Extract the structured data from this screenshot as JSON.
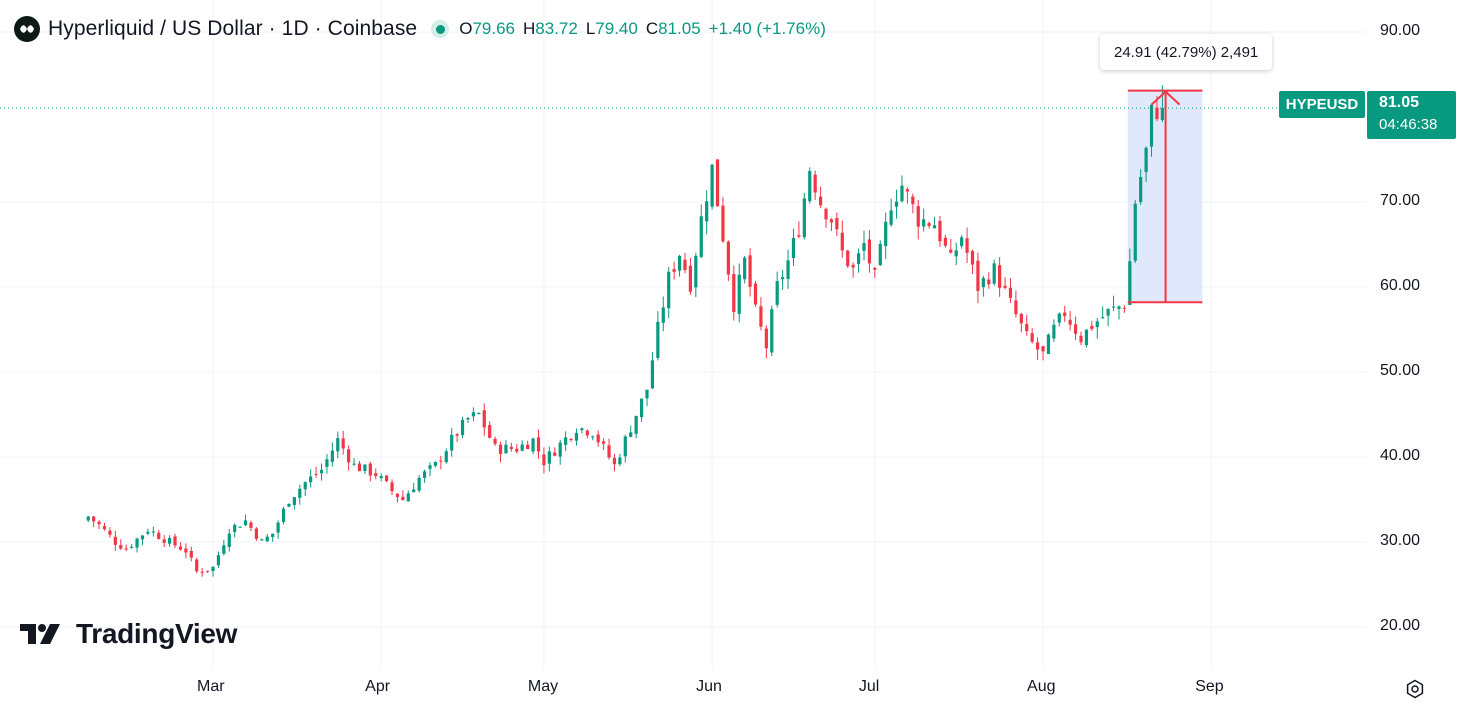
{
  "header": {
    "symbol_title": "Hyperliquid / US Dollar · 1D · Coinbase",
    "open_label": "O",
    "open_value": "79.66",
    "high_label": "H",
    "high_value": "83.72",
    "low_label": "L",
    "low_value": "79.40",
    "close_label": "C",
    "close_value": "81.05",
    "change": "+1.40 (+1.76%)",
    "logo_icon": "hyperliquid-logo-icon",
    "market_status_icon": "market-open-dot-icon"
  },
  "measure_tooltip": "24.91 (42.79%) 2,491",
  "price_tag": {
    "symbol": "HYPEUSD",
    "price": "81.05",
    "countdown": "04:46:38"
  },
  "brand": {
    "name": "TradingView"
  },
  "settings_icon": "settings-gear-icon",
  "colors": {
    "up": "#089981",
    "down": "#F23645",
    "measure": "#F23645",
    "measure_fill": "#DBE4FB",
    "grid": "#F0F3FA",
    "text": "#131722"
  },
  "chart_data": {
    "type": "candlestick",
    "interval": "1D",
    "ylim": [
      13,
      93
    ],
    "y_ticks": [
      "90.00",
      "70.00",
      "60.00",
      "50.00",
      "40.00",
      "30.00",
      "20.00"
    ],
    "x_ticks": [
      "Mar",
      "Apr",
      "May",
      "Jun",
      "Jul",
      "Aug",
      "Sep"
    ],
    "grid": true,
    "current_price": 81.05,
    "date_range": {
      "first_candle_day": -23,
      "last_candle_day": 175,
      "x_tick_days": [
        0,
        31,
        61,
        92,
        122,
        153,
        184
      ]
    },
    "anchors": [
      [
        -23,
        33.0
      ],
      [
        -21,
        32.0
      ],
      [
        -18,
        30.0
      ],
      [
        -16,
        29.2
      ],
      [
        -12,
        31.5
      ],
      [
        -8,
        30.0
      ],
      [
        -5,
        29.0
      ],
      [
        -3,
        26.5
      ],
      [
        0,
        27.0
      ],
      [
        3,
        31.5
      ],
      [
        6,
        32.5
      ],
      [
        9,
        30.0
      ],
      [
        11,
        31.0
      ],
      [
        14,
        35.0
      ],
      [
        17,
        37.0
      ],
      [
        20,
        38.5
      ],
      [
        23,
        42.0
      ],
      [
        26,
        39.0
      ],
      [
        30,
        38.0
      ],
      [
        33,
        36.0
      ],
      [
        35,
        35.0
      ],
      [
        38,
        37.5
      ],
      [
        41,
        39.0
      ],
      [
        44,
        42.0
      ],
      [
        47,
        44.5
      ],
      [
        49,
        45.0
      ],
      [
        52,
        41.0
      ],
      [
        56,
        41.0
      ],
      [
        59,
        42.0
      ],
      [
        61,
        39.5
      ],
      [
        64,
        41.5
      ],
      [
        67,
        43.5
      ],
      [
        70,
        43.0
      ],
      [
        72,
        41.0
      ],
      [
        74,
        39.0
      ],
      [
        76,
        42.0
      ],
      [
        78,
        45.0
      ],
      [
        80,
        48.0
      ],
      [
        82,
        55.0
      ],
      [
        84,
        61.0
      ],
      [
        86,
        64.0
      ],
      [
        88,
        60.5
      ],
      [
        90,
        68.0
      ],
      [
        92,
        74.0
      ],
      [
        94,
        66.0
      ],
      [
        96,
        58.0
      ],
      [
        98,
        63.0
      ],
      [
        100,
        57.0
      ],
      [
        102,
        53.0
      ],
      [
        104,
        60.0
      ],
      [
        106,
        63.0
      ],
      [
        108,
        67.0
      ],
      [
        110,
        74.0
      ],
      [
        112,
        70.0
      ],
      [
        114,
        68.0
      ],
      [
        116,
        64.0
      ],
      [
        118,
        62.0
      ],
      [
        120,
        65.0
      ],
      [
        122,
        61.0
      ],
      [
        125,
        70.0
      ],
      [
        127,
        72.0
      ],
      [
        130,
        68.0
      ],
      [
        133,
        67.5
      ],
      [
        136,
        63.0
      ],
      [
        138,
        66.0
      ],
      [
        141,
        60.0
      ],
      [
        144,
        62.0
      ],
      [
        147,
        58.0
      ],
      [
        150,
        54.0
      ],
      [
        153,
        52.0
      ],
      [
        155,
        55.0
      ],
      [
        157,
        57.0
      ],
      [
        160,
        54.0
      ],
      [
        162,
        55.5
      ],
      [
        165,
        57.0
      ],
      [
        168,
        58.0
      ],
      [
        169,
        63.0
      ],
      [
        170,
        70.0
      ],
      [
        172,
        76.0
      ],
      [
        173,
        80.5
      ],
      [
        175,
        81.05
      ]
    ],
    "measure": {
      "start_day": 169,
      "end_day": 182,
      "from_price": 58.2,
      "to_price": 83.1,
      "change": 24.91,
      "change_percent": 42.79,
      "ticks": 2491
    }
  }
}
